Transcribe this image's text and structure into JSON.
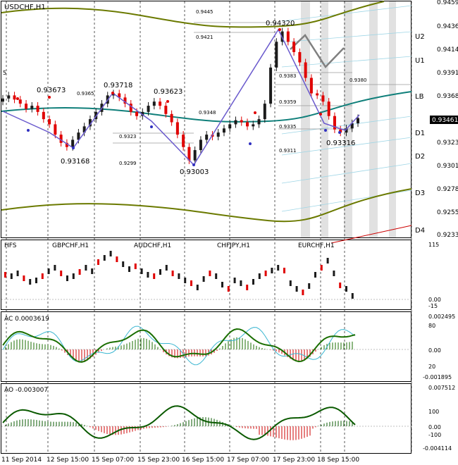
{
  "window": {
    "title": "USDCHF,H1"
  },
  "colors": {
    "bull": "#1b1b1b",
    "bear": "#e00000",
    "grid": "#bfbfbf",
    "vdash": "#303030",
    "olive": "#6b7a00",
    "teal": "#0f7f7a",
    "zigzag": "#6a5acd",
    "shade": "#c8c8c8",
    "band": "#9fd6e6",
    "signal": "#808080",
    "redline": "#cc0000",
    "ac_line": "#1a6e00",
    "ac_fast": "#3ab6d1",
    "ao_line": "#0a5a00",
    "dot_red": "#e00000",
    "dot_blue": "#3030c0"
  },
  "main": {
    "price_axis": [
      "0.94591",
      "0.94360",
      "0.94141",
      "0.93911",
      "0.93686",
      "0.93461",
      "0.93236",
      "0.93011",
      "0.92786",
      "0.92556",
      "0.92331"
    ],
    "current_price": "0.93461",
    "levels": [
      {
        "label": "U2"
      },
      {
        "label": "U1"
      },
      {
        "label": "LB"
      },
      {
        "label": "D1"
      },
      {
        "label": "D2"
      },
      {
        "label": "D3"
      },
      {
        "label": "D4"
      }
    ],
    "pivot_labels": [
      "0.93673",
      "0.93718",
      "0.93623",
      "0.93168",
      "0.93003",
      "0.94320",
      "0.93316"
    ],
    "small_labels": [
      "0.9445",
      "0.9421",
      "0.9365",
      "0.9348",
      "0.9323",
      "0.9299",
      "0.9383",
      "0.9359",
      "0.9335",
      "0.9311",
      "0.9380"
    ],
    "corner_mark": "5"
  },
  "sub1": {
    "title": "HFS",
    "instruments": [
      "GBPCHF,H1",
      "AUDCHF,H1",
      "CHFJPY,H1",
      "EURCHF,H1"
    ],
    "axis": [
      "115",
      "0.00",
      "-15"
    ]
  },
  "sub2": {
    "title": "AC 0.0003619",
    "axis_right": [
      "0.002495",
      "80",
      "0.00",
      "20",
      "-0.001895"
    ]
  },
  "sub3": {
    "title": "AO -0.003007",
    "axis_right": [
      "0.007512",
      "100",
      "0.00",
      "-100",
      "-0.004114"
    ]
  },
  "time_axis": [
    "11 Sep 2014",
    "12 Sep 15:00",
    "15 Sep 07:00",
    "15 Sep 23:00",
    "16 Sep 15:00",
    "17 Sep 07:00",
    "17 Sep 23:00",
    "18 Sep 15:00"
  ],
  "chart_data": {
    "type": "candlestick",
    "symbol": "USDCHF,H1",
    "ylim": [
      0.9233,
      0.9459
    ],
    "pivots": [
      {
        "price": 0.93673
      },
      {
        "price": 0.93718
      },
      {
        "price": 0.93623
      },
      {
        "price": 0.93168
      },
      {
        "price": 0.93003
      },
      {
        "price": 0.9432
      },
      {
        "price": 0.93316
      }
    ],
    "close_path": [
      0.9365,
      0.9368,
      0.9364,
      0.936,
      0.9355,
      0.9358,
      0.9352,
      0.9345,
      0.934,
      0.933,
      0.9322,
      0.9318,
      0.9325,
      0.9332,
      0.9338,
      0.9345,
      0.9352,
      0.936,
      0.9368,
      0.937,
      0.9366,
      0.936,
      0.9352,
      0.9348,
      0.9352,
      0.9358,
      0.9362,
      0.9358,
      0.935,
      0.9342,
      0.933,
      0.9318,
      0.9305,
      0.9315,
      0.9325,
      0.933,
      0.9328,
      0.9332,
      0.9336,
      0.934,
      0.9344,
      0.9342,
      0.9338,
      0.934,
      0.9345,
      0.936,
      0.9395,
      0.942,
      0.943,
      0.942,
      0.941,
      0.94,
      0.9385,
      0.937,
      0.9368,
      0.9362,
      0.9348,
      0.9335,
      0.9332,
      0.9336,
      0.9341,
      0.9346
    ]
  }
}
